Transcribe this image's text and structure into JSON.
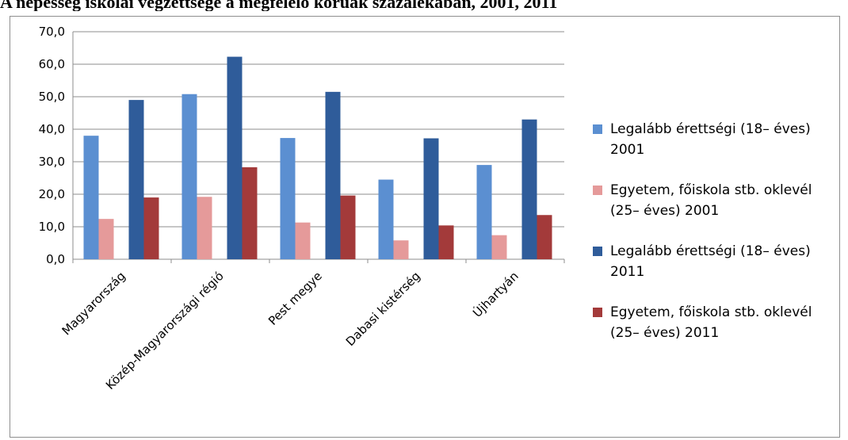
{
  "chart_data": {
    "type": "bar",
    "title": "A népesség iskolai végzettsége a megfelelő korúak százalékában, 2001, 2011",
    "xlabel": "",
    "ylabel": "",
    "ylim": [
      0,
      70
    ],
    "yticks": [
      "0,0",
      "10,0",
      "20,0",
      "30,0",
      "40,0",
      "50,0",
      "60,0",
      "70,0"
    ],
    "grid": true,
    "legend_position": "right",
    "categories": [
      "Magyarország",
      "Közép-Magyarországi régió",
      "Pest megye",
      "Dabasi kistérség",
      "Újhartyán"
    ],
    "series": [
      {
        "name": "Legalább érettségi (18– éves) 2001",
        "color": "#5b8fd1",
        "values": [
          38.0,
          50.8,
          37.3,
          24.5,
          29.0
        ]
      },
      {
        "name": "Egyetem, főiskola stb. oklevél (25– éves) 2001",
        "color": "#e59a9a",
        "values": [
          12.4,
          19.2,
          11.3,
          5.8,
          7.4
        ]
      },
      {
        "name": "Legalább érettségi (18– éves) 2011",
        "color": "#2f5c9a",
        "values": [
          49.0,
          62.3,
          51.5,
          37.2,
          43.0
        ]
      },
      {
        "name": "Egyetem, főiskola stb. oklevél (25– éves) 2011",
        "color": "#a33a3a",
        "values": [
          19.0,
          28.3,
          19.6,
          10.4,
          13.6
        ]
      }
    ]
  }
}
